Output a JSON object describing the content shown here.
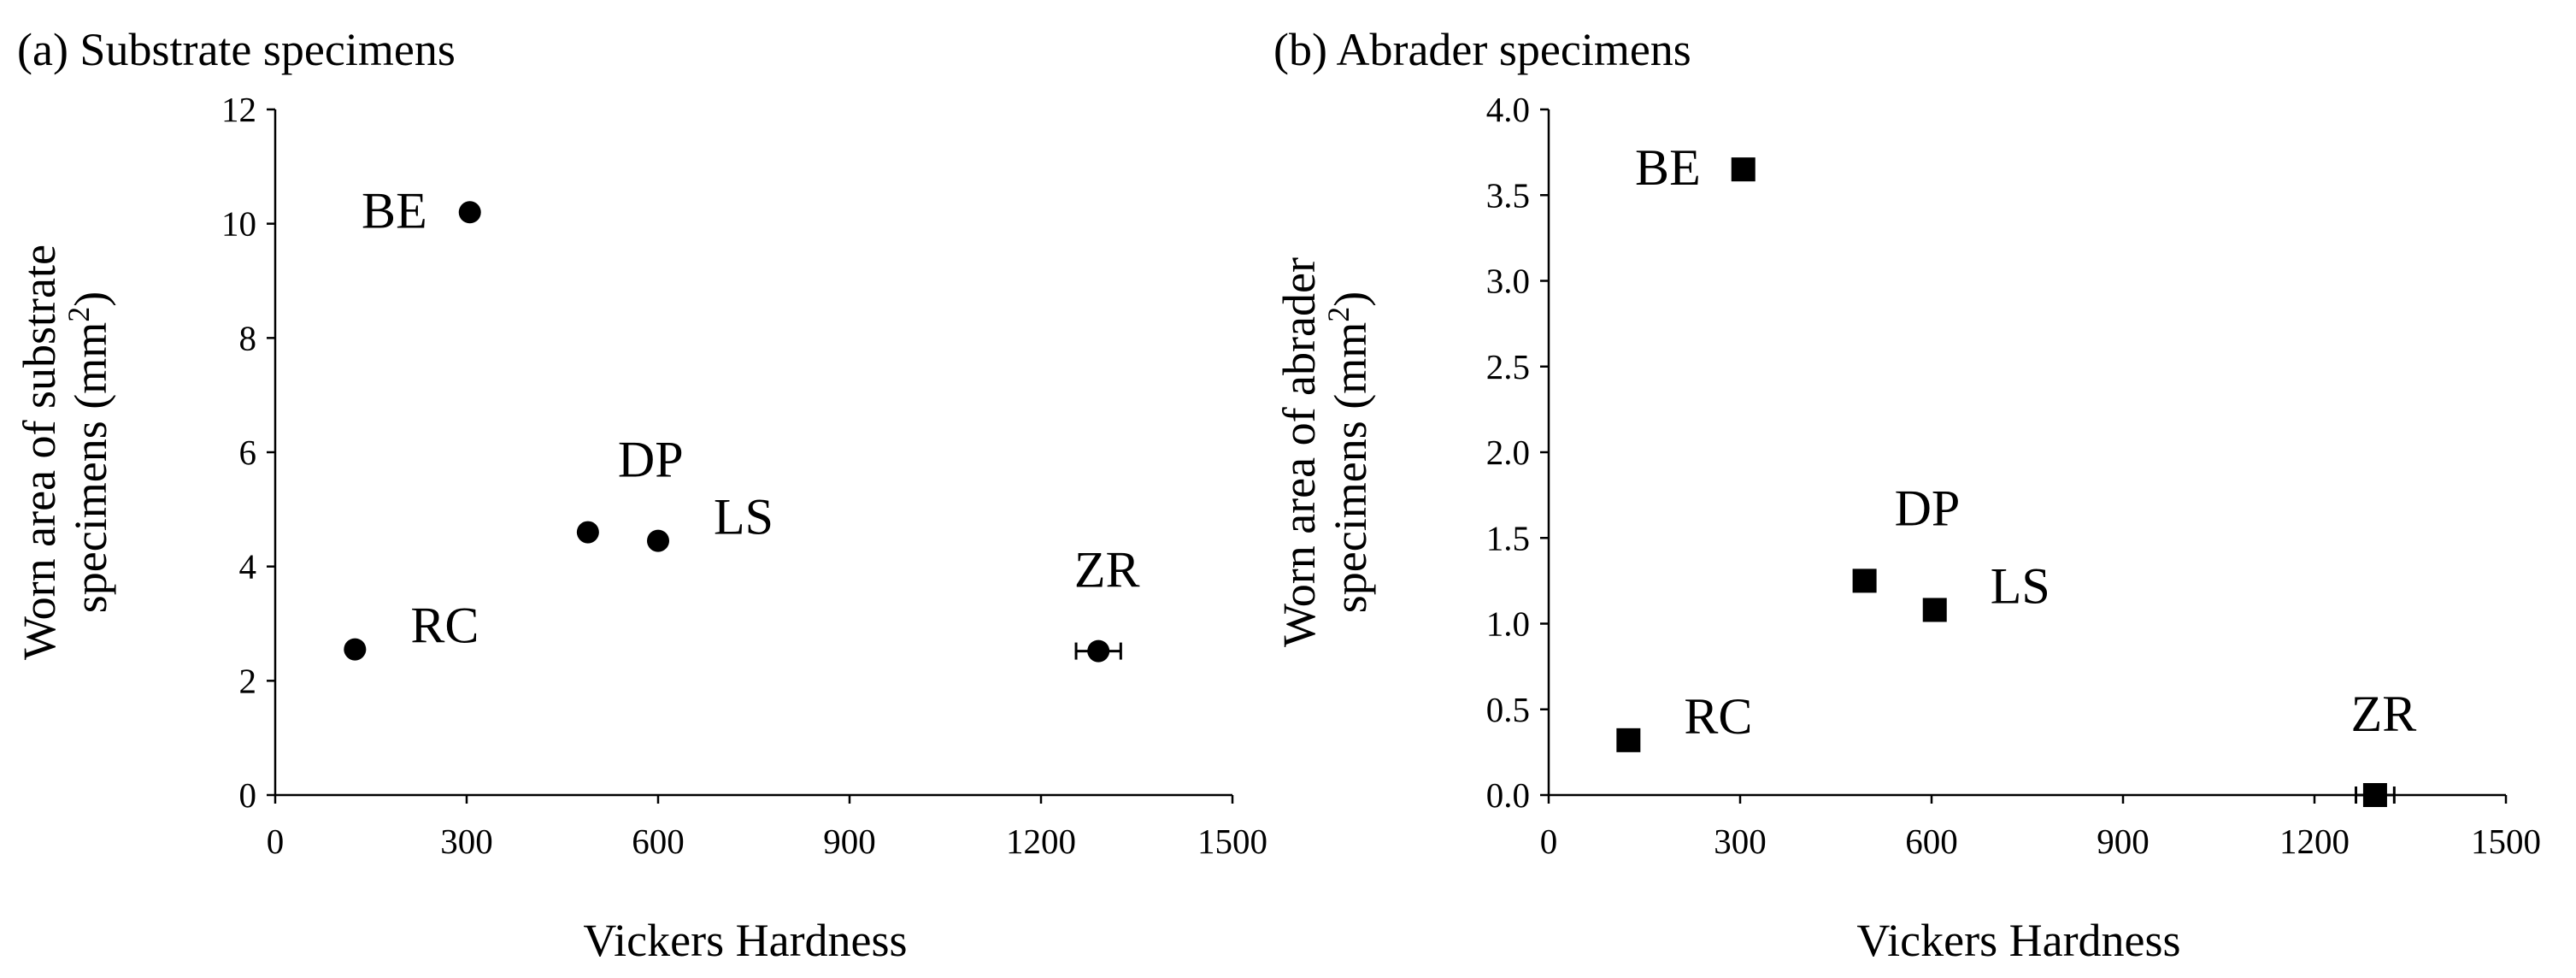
{
  "chart_data": [
    {
      "type": "scatter",
      "title": "(a) Substrate specimens",
      "xlabel": "Vickers Hardness",
      "ylabel": [
        "Worn area of substrate",
        "specimens (mm",
        "2",
        ")"
      ],
      "xlim": [
        0,
        1500
      ],
      "ylim": [
        0,
        12
      ],
      "xticks": [
        "0",
        "300",
        "600",
        "900",
        "1200",
        "1500"
      ],
      "yticks": [
        "0",
        "2",
        "4",
        "6",
        "8",
        "10",
        "12"
      ],
      "marker": "circle",
      "marker_color": "#000000",
      "grid": false,
      "legend": "none",
      "points": [
        {
          "label": "BE",
          "x": 305,
          "y": 10.2,
          "label_pos": "left"
        },
        {
          "label": "DP",
          "x": 490,
          "y": 4.6,
          "label_pos": "above-right"
        },
        {
          "label": "LS",
          "x": 600,
          "y": 4.45,
          "label_pos": "right-up"
        },
        {
          "label": "RC",
          "x": 125,
          "y": 2.55,
          "label_pos": "right-up"
        },
        {
          "label": "ZR",
          "x": 1290,
          "y": 2.52,
          "xerr": 35,
          "label_pos": "above"
        }
      ]
    },
    {
      "type": "scatter",
      "title": "(b) Abrader specimens",
      "xlabel": "Vickers Hardness",
      "ylabel": [
        "Worn area of abrader",
        "specimens  (mm",
        "2",
        ")"
      ],
      "xlim": [
        0,
        1500
      ],
      "ylim": [
        0,
        4.0
      ],
      "xticks": [
        "0",
        "300",
        "600",
        "900",
        "1200",
        "1500"
      ],
      "yticks": [
        "0.0",
        "0.5",
        "1.0",
        "1.5",
        "2.0",
        "2.5",
        "3.0",
        "3.5",
        "4.0"
      ],
      "marker": "square",
      "marker_color": "#000000",
      "grid": false,
      "legend": "none",
      "points": [
        {
          "label": "BE",
          "x": 305,
          "y": 3.65,
          "label_pos": "left"
        },
        {
          "label": "DP",
          "x": 495,
          "y": 1.25,
          "label_pos": "above-right"
        },
        {
          "label": "LS",
          "x": 605,
          "y": 1.08,
          "label_pos": "right-up"
        },
        {
          "label": "RC",
          "x": 125,
          "y": 0.32,
          "label_pos": "right-up"
        },
        {
          "label": "ZR",
          "x": 1295,
          "y": 0.0,
          "xerr": 30,
          "label_pos": "above"
        }
      ]
    }
  ]
}
